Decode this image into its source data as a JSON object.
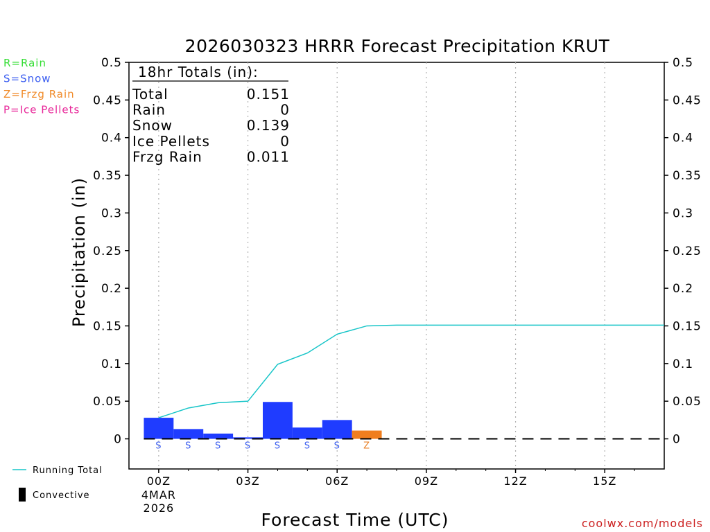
{
  "chart_data": {
    "type": "bar",
    "title": "2026030323 HRRR Forecast Precipitation KRUT",
    "xlabel": "Forecast Time (UTC)",
    "ylabel": "Precipitation (in)",
    "ylim": [
      -0.04,
      0.5
    ],
    "xlim_hours": [
      -1,
      17
    ],
    "grid": "vertical dotted at x ticks",
    "y_ticks": [
      "0",
      "0.05",
      "0.1",
      "0.15",
      "0.2",
      "0.25",
      "0.3",
      "0.35",
      "0.4",
      "0.45",
      "0.5"
    ],
    "x_ticks": [
      {
        "label": "00Z",
        "hour": 0,
        "date": "4MAR",
        "year": "2026"
      },
      {
        "label": "03Z",
        "hour": 3
      },
      {
        "label": "06Z",
        "hour": 6
      },
      {
        "label": "09Z",
        "hour": 9
      },
      {
        "label": "12Z",
        "hour": 12
      },
      {
        "label": "15Z",
        "hour": 15
      }
    ],
    "bars": [
      {
        "hour": 0,
        "value": 0.028,
        "type": "S"
      },
      {
        "hour": 1,
        "value": 0.013,
        "type": "S"
      },
      {
        "hour": 2,
        "value": 0.007,
        "type": "S"
      },
      {
        "hour": 3,
        "value": 0.002,
        "type": "S"
      },
      {
        "hour": 4,
        "value": 0.049,
        "type": "S"
      },
      {
        "hour": 5,
        "value": 0.015,
        "type": "S"
      },
      {
        "hour": 6,
        "value": 0.025,
        "type": "S"
      },
      {
        "hour": 7,
        "value": 0.011,
        "type": "Z"
      }
    ],
    "running_total": [
      {
        "hour": 0,
        "value": 0.028
      },
      {
        "hour": 1,
        "value": 0.041
      },
      {
        "hour": 2,
        "value": 0.048
      },
      {
        "hour": 3,
        "value": 0.05
      },
      {
        "hour": 4,
        "value": 0.099
      },
      {
        "hour": 5,
        "value": 0.114
      },
      {
        "hour": 6,
        "value": 0.139
      },
      {
        "hour": 7,
        "value": 0.15
      },
      {
        "hour": 8,
        "value": 0.151
      },
      {
        "hour": 17,
        "value": 0.151
      }
    ],
    "totals_box": {
      "header": "18hr Totals (in):",
      "rows": [
        {
          "label": "Total",
          "value": "0.151"
        },
        {
          "label": "Rain",
          "value": "0"
        },
        {
          "label": "Snow",
          "value": "0.139"
        },
        {
          "label": "Ice Pellets",
          "value": "0"
        },
        {
          "label": "Frzg Rain",
          "value": "0.011"
        }
      ]
    },
    "type_legend": [
      {
        "text": "R=Rain",
        "color": "#33dd33"
      },
      {
        "text": "S=Snow",
        "color": "#3a5df0"
      },
      {
        "text": "Z=Frzg Rain",
        "color": "#f08a28"
      },
      {
        "text": "P=Ice Pellets",
        "color": "#e8289a"
      }
    ],
    "type_colors": {
      "S": "#1f3cff",
      "Z": "#f07e1e",
      "R": "#22cc22",
      "P": "#e81e96"
    },
    "type_label_colors": {
      "S": "#3a5df0",
      "Z": "#e8822a",
      "R": "#22cc22",
      "P": "#e81e96"
    },
    "line_legend": [
      {
        "text": "Running Total",
        "color": "#17c5c8",
        "kind": "line"
      },
      {
        "text": "Convective",
        "color": "#000000",
        "kind": "bar"
      }
    ],
    "running_total_color": "#17c5c8",
    "credit": "coolwx.com/models"
  }
}
